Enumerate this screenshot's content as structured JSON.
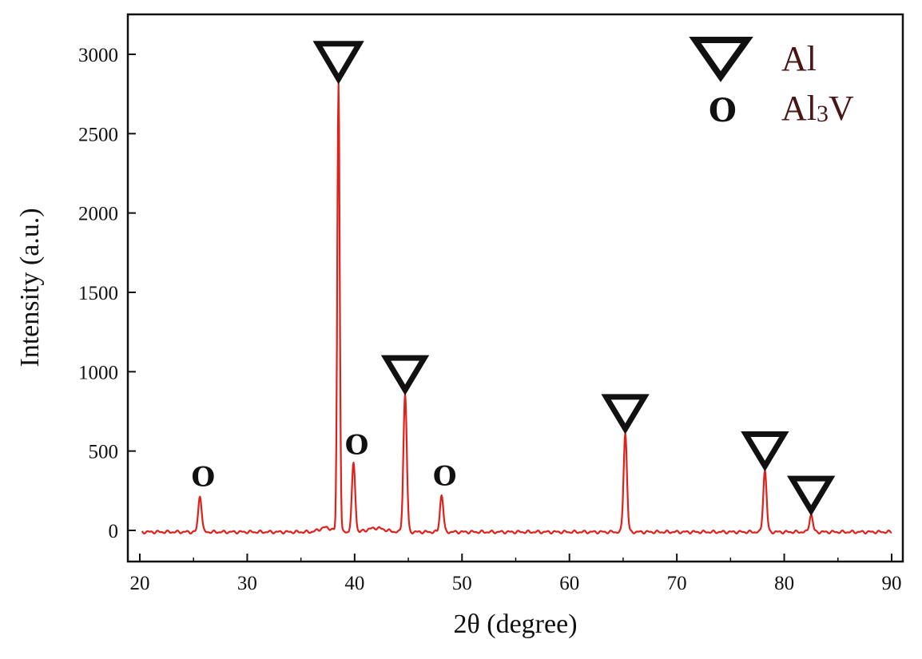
{
  "chart_data": {
    "type": "line",
    "xlabel": "2θ (degree)",
    "ylabel": "Intensity (a.u.)",
    "xlim": [
      20,
      90
    ],
    "ylim": [
      -100,
      3250
    ],
    "xticks": [
      20,
      30,
      40,
      50,
      60,
      70,
      80,
      90
    ],
    "yticks": [
      0,
      500,
      1000,
      1500,
      2000,
      2500,
      3000
    ],
    "grid": false,
    "legend_position": "top-right",
    "line_color": "#e0201b",
    "legend": [
      {
        "symbol": "∇",
        "label": "Al",
        "marker": "triangle"
      },
      {
        "symbol": "O",
        "label_main": "Al",
        "label_sub": "3",
        "label_tail": "V",
        "marker": "circle"
      }
    ],
    "series": [
      {
        "peaks": [
          {
            "x": 25.6,
            "y": 220,
            "phase": "Al3V"
          },
          {
            "x": 38.5,
            "y": 2820,
            "phase": "Al"
          },
          {
            "x": 39.9,
            "y": 420,
            "phase": "Al3V"
          },
          {
            "x": 44.7,
            "y": 860,
            "phase": "Al"
          },
          {
            "x": 48.1,
            "y": 225,
            "phase": "Al3V"
          },
          {
            "x": 65.2,
            "y": 615,
            "phase": "Al"
          },
          {
            "x": 78.2,
            "y": 380,
            "phase": "Al"
          },
          {
            "x": 82.5,
            "y": 100,
            "phase": "Al"
          }
        ],
        "baseline": -10
      }
    ]
  }
}
